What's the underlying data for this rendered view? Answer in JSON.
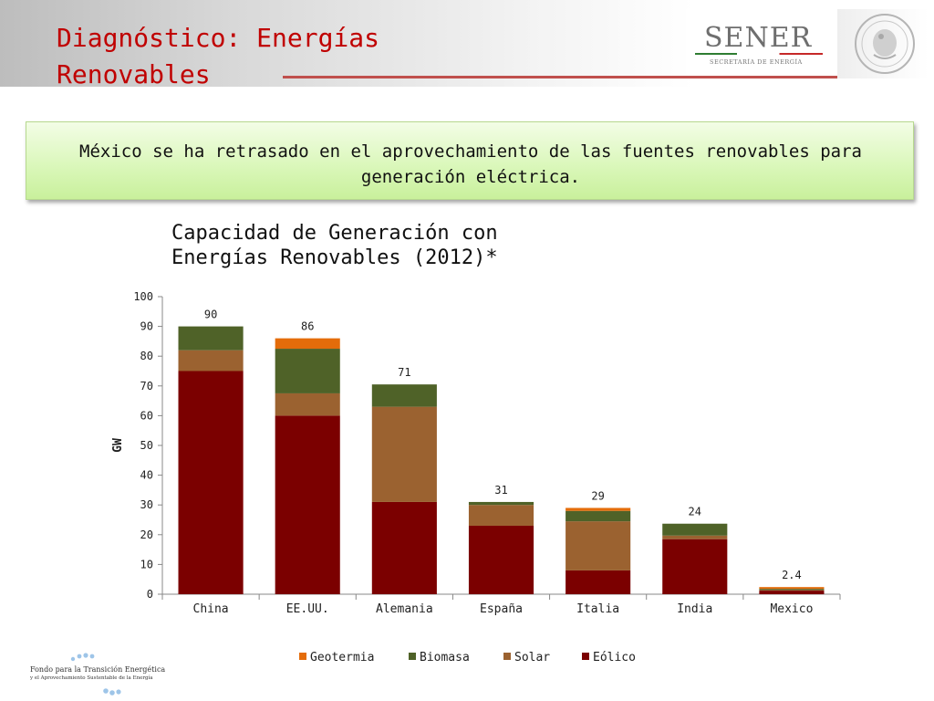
{
  "slide": {
    "title": "Diagnóstico: Energías Renovables",
    "callout": "México se ha retrasado en el aprovechamiento de las fuentes renovables para generación eléctrica."
  },
  "logos": {
    "sener_name": "SENER",
    "sener_subtitle": "SECRETARÍA DE ENERGÍA",
    "seal_icon": "mexico-coat-of-arms-seal",
    "footer_line1": "Fondo para la Transición Energética",
    "footer_line2": "y el Aprovechamiento Sustentable de la Energía"
  },
  "chart_data": {
    "type": "bar",
    "stacked": true,
    "title": "Capacidad de Generación con Energías Renovables (2012)*",
    "ylabel": "GW",
    "xlabel": "",
    "ylim": [
      0,
      100
    ],
    "yticks": [
      0,
      10,
      20,
      30,
      40,
      50,
      60,
      70,
      80,
      90,
      100
    ],
    "categories": [
      "China",
      "EE.UU.",
      "Alemania",
      "España",
      "Italia",
      "India",
      "Mexico"
    ],
    "totals_labels": [
      "90",
      "86",
      "71",
      "31",
      "29",
      "24",
      "2.4"
    ],
    "series": [
      {
        "name": "Eólico",
        "color": "#7b0000",
        "values": [
          75,
          60,
          31,
          23,
          8,
          18.5,
          1.2
        ]
      },
      {
        "name": "Solar",
        "color": "#9b6230",
        "values": [
          7,
          7.5,
          32,
          7,
          16.5,
          1.2,
          0.2
        ]
      },
      {
        "name": "Biomasa",
        "color": "#4f6228",
        "values": [
          8,
          15,
          7.5,
          1,
          3.5,
          4,
          0.4
        ]
      },
      {
        "name": "Geotermia",
        "color": "#e46c0a",
        "values": [
          0,
          3.5,
          0,
          0,
          1,
          0,
          0.6
        ]
      }
    ],
    "legend": {
      "position": "bottom",
      "order": [
        "Geotermia",
        "Biomasa",
        "Solar",
        "Eólico"
      ]
    },
    "grid": false
  }
}
